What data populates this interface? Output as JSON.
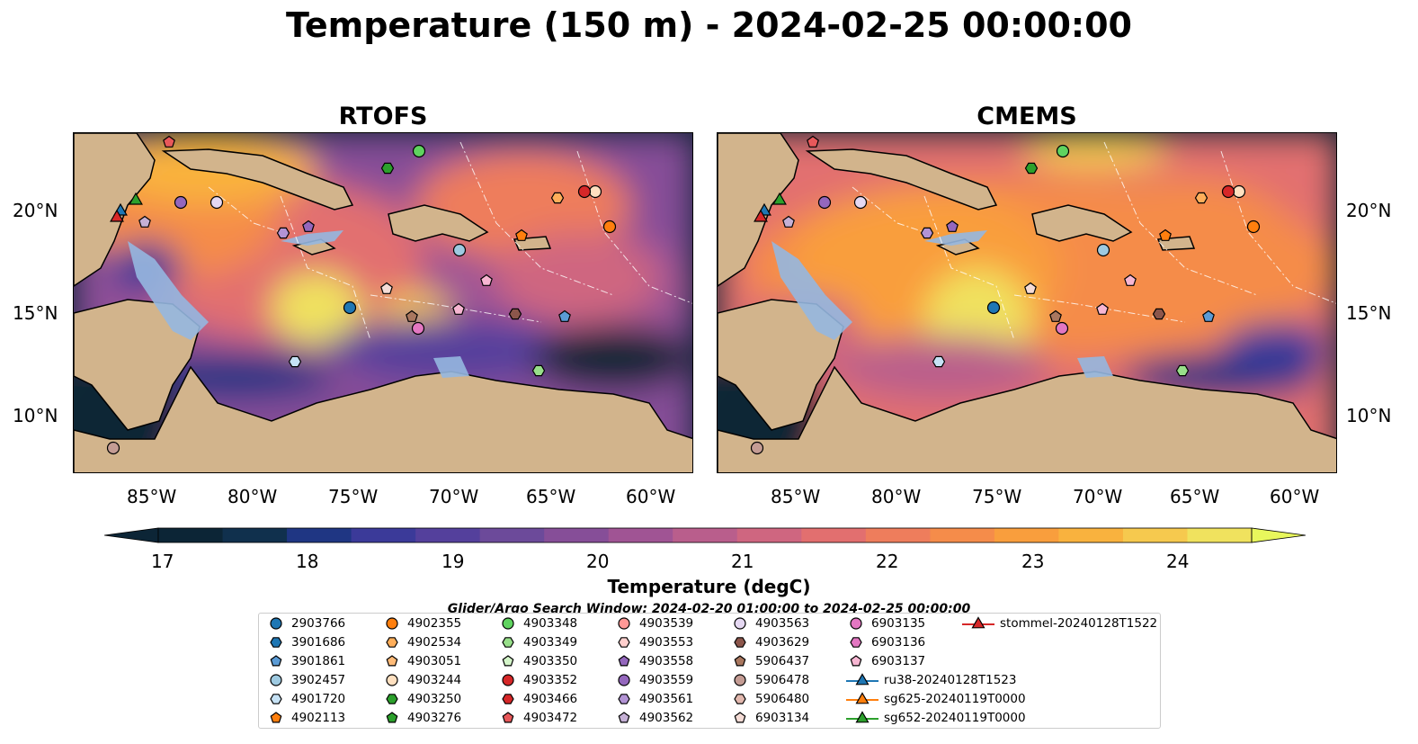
{
  "title": "Temperature (150 m) - 2024-02-25 00:00:00",
  "panels": [
    {
      "title": "RTOFS"
    },
    {
      "title": "CMEMS"
    }
  ],
  "lat_ticks": [
    "20°N",
    "15°N",
    "10°N"
  ],
  "lon_ticks": [
    "85°W",
    "80°W",
    "75°W",
    "70°W",
    "65°W",
    "60°W"
  ],
  "colorbar": {
    "title": "Temperature (degC)",
    "ticks": [
      "17",
      "18",
      "19",
      "20",
      "21",
      "22",
      "23",
      "24"
    ],
    "range": [
      17,
      24.5
    ],
    "colors": [
      "#0c2536",
      "#10304d",
      "#1f3683",
      "#3b3a99",
      "#54409c",
      "#6c4a9a",
      "#864e98",
      "#a05494",
      "#b95e8c",
      "#cf6680",
      "#e26f6f",
      "#ee7d5c",
      "#f58c4a",
      "#f99e3d",
      "#f9b23e",
      "#f6c94e",
      "#f0e25e"
    ],
    "extend_color": "#e8f75c"
  },
  "search_window": "Glider/Argo Search Window: 2024-02-20 01:00:00 to 2024-02-25 00:00:00",
  "legend": [
    {
      "label": "2903766",
      "marker": "circle",
      "color": "#1f77b4"
    },
    {
      "label": "3901686",
      "marker": "hexagon",
      "color": "#1f77b4"
    },
    {
      "label": "3901861",
      "marker": "pentagon",
      "color": "#5b9bd5"
    },
    {
      "label": "3902457",
      "marker": "circle",
      "color": "#9ecae1"
    },
    {
      "label": "4901720",
      "marker": "hexagon",
      "color": "#c6e2f5"
    },
    {
      "label": "4902113",
      "marker": "pentagon",
      "color": "#ff7f0e"
    },
    {
      "label": "4902355",
      "marker": "circle",
      "color": "#ff7f0e"
    },
    {
      "label": "4902534",
      "marker": "hexagon",
      "color": "#ffae5a"
    },
    {
      "label": "4903051",
      "marker": "pentagon",
      "color": "#ffbb78"
    },
    {
      "label": "4903244",
      "marker": "circle",
      "color": "#ffe0c0"
    },
    {
      "label": "4903250",
      "marker": "hexagon",
      "color": "#2ca02c"
    },
    {
      "label": "4903276",
      "marker": "pentagon",
      "color": "#2ca02c"
    },
    {
      "label": "4903348",
      "marker": "circle",
      "color": "#5fd35f"
    },
    {
      "label": "4903349",
      "marker": "hexagon",
      "color": "#98df8a"
    },
    {
      "label": "4903350",
      "marker": "pentagon",
      "color": "#d4f5c9"
    },
    {
      "label": "4903352",
      "marker": "circle",
      "color": "#d62728"
    },
    {
      "label": "4903466",
      "marker": "hexagon",
      "color": "#d62728"
    },
    {
      "label": "4903472",
      "marker": "pentagon",
      "color": "#e8585a"
    },
    {
      "label": "4903539",
      "marker": "circle",
      "color": "#ff9896"
    },
    {
      "label": "4903553",
      "marker": "hexagon",
      "color": "#ffcfcd"
    },
    {
      "label": "4903558",
      "marker": "pentagon",
      "color": "#9467bd"
    },
    {
      "label": "4903559",
      "marker": "circle",
      "color": "#9467bd"
    },
    {
      "label": "4903561",
      "marker": "hexagon",
      "color": "#b293d4"
    },
    {
      "label": "4903562",
      "marker": "pentagon",
      "color": "#c5b0d5"
    },
    {
      "label": "4903563",
      "marker": "circle",
      "color": "#e5d8f2"
    },
    {
      "label": "4903629",
      "marker": "hexagon",
      "color": "#8c564b"
    },
    {
      "label": "5906437",
      "marker": "pentagon",
      "color": "#a9775f"
    },
    {
      "label": "5906478",
      "marker": "circle",
      "color": "#c49c94"
    },
    {
      "label": "5906480",
      "marker": "hexagon",
      "color": "#e2b8ae"
    },
    {
      "label": "6903134",
      "marker": "pentagon",
      "color": "#f5dcd6"
    },
    {
      "label": "6903135",
      "marker": "circle",
      "color": "#e377c2"
    },
    {
      "label": "6903136",
      "marker": "hexagon",
      "color": "#e377c2"
    },
    {
      "label": "6903137",
      "marker": "pentagon",
      "color": "#f7b6d2"
    },
    {
      "label": "ru38-20240128T1523",
      "marker": "triangle",
      "color": "#1f77b4"
    },
    {
      "label": "sg625-20240119T0000",
      "marker": "triangle",
      "color": "#ff7f0e"
    },
    {
      "label": "sg652-20240119T0000",
      "marker": "triangle",
      "color": "#2ca02c"
    },
    {
      "label": "stommel-20240128T1522",
      "marker": "triangle",
      "color": "#d62728"
    }
  ],
  "map_colors": {
    "land": "#d2b48c",
    "shelf": "#95b7e0",
    "ocean_cold": "#0c2536"
  }
}
